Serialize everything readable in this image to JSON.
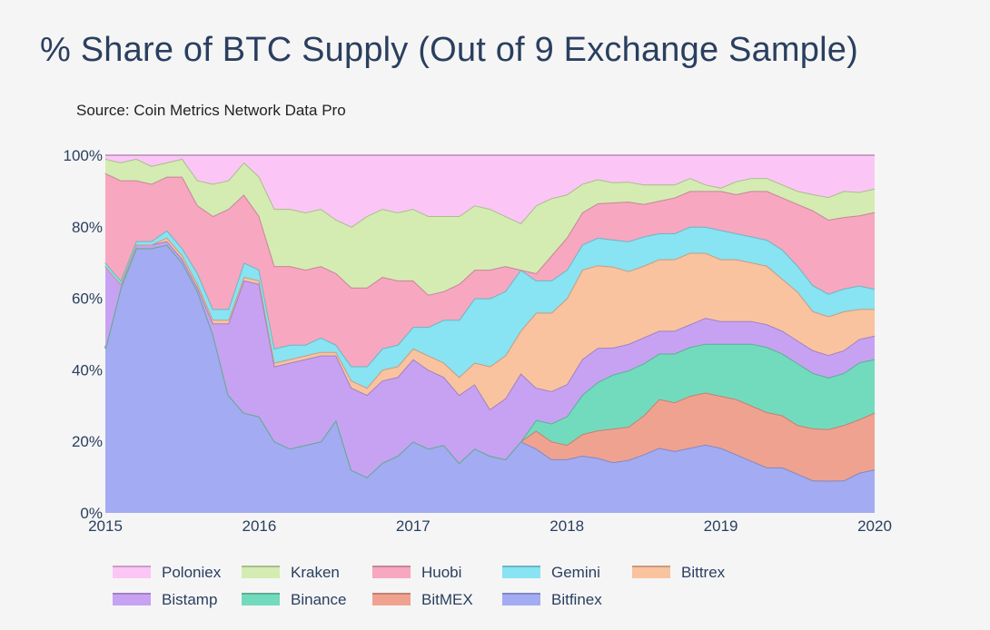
{
  "title": "% Share of BTC Supply (Out of 9 Exchange Sample)",
  "subtitle": "Source: Coin Metrics Network Data Pro",
  "chart_data": {
    "type": "area",
    "stacked": true,
    "normalized": true,
    "x": [
      2015.0,
      2015.1,
      2015.2,
      2015.3,
      2015.4,
      2015.5,
      2015.6,
      2015.7,
      2015.8,
      2015.9,
      2016.0,
      2016.1,
      2016.2,
      2016.3,
      2016.4,
      2016.5,
      2016.6,
      2016.7,
      2016.8,
      2016.9,
      2017.0,
      2017.1,
      2017.2,
      2017.3,
      2017.4,
      2017.5,
      2017.6,
      2017.7,
      2017.8,
      2017.9,
      2018.0,
      2018.1,
      2018.2,
      2018.3,
      2018.4,
      2018.5,
      2018.6,
      2018.7,
      2018.8,
      2018.9,
      2019.0,
      2019.1,
      2019.2,
      2019.3,
      2019.4,
      2019.5,
      2019.6,
      2019.7,
      2019.8,
      2019.9,
      2020.0
    ],
    "series": [
      {
        "name": "Bitfinex",
        "color": "#a3abf2",
        "values": [
          46,
          63,
          74,
          74,
          75,
          70,
          62,
          50,
          33,
          28,
          27,
          20,
          18,
          19,
          20,
          26,
          12,
          10,
          14,
          16,
          20,
          18,
          19,
          14,
          18,
          16,
          15,
          20,
          18,
          15,
          15,
          16,
          16,
          15,
          16,
          18,
          20,
          19,
          20,
          21,
          20,
          18,
          16,
          14,
          14,
          12,
          10,
          10,
          10,
          12,
          13
        ]
      },
      {
        "name": "BitMEX",
        "color": "#f0a290",
        "values": [
          0,
          0,
          0,
          0,
          0,
          0,
          0,
          0,
          0,
          0,
          0,
          0,
          0,
          0,
          0,
          0,
          0,
          0,
          0,
          0,
          0,
          0,
          0,
          0,
          0,
          0,
          0,
          0,
          5,
          5,
          4,
          6,
          8,
          10,
          10,
          12,
          15,
          15,
          16,
          16,
          16,
          17,
          17,
          17,
          16,
          15,
          16,
          16,
          17,
          16,
          17
        ]
      },
      {
        "name": "Binance",
        "color": "#73dbbd",
        "values": [
          0,
          0,
          0,
          0,
          0,
          0,
          0,
          0,
          0,
          0,
          0,
          0,
          0,
          0,
          0,
          0,
          0,
          0,
          0,
          0,
          0,
          0,
          0,
          0,
          0,
          0,
          0,
          0,
          3,
          5,
          8,
          11,
          14,
          16,
          17,
          16,
          14,
          15,
          15,
          15,
          16,
          17,
          19,
          20,
          19,
          19,
          17,
          16,
          16,
          17,
          16
        ]
      },
      {
        "name": "Bistamp",
        "color": "#c8a2f2",
        "values": [
          23,
          1,
          1,
          1,
          1,
          1,
          1,
          3,
          20,
          37,
          37,
          21,
          24,
          24,
          24,
          18,
          23,
          23,
          23,
          22,
          23,
          22,
          19,
          19,
          18,
          13,
          17,
          19,
          9,
          9,
          9,
          10,
          10,
          8,
          8,
          8,
          7,
          7,
          7,
          8,
          7,
          7,
          7,
          7,
          7,
          7,
          7,
          7,
          7,
          7,
          7
        ]
      },
      {
        "name": "Bittrex",
        "color": "#f9c39f",
        "values": [
          0,
          0,
          0,
          0,
          1,
          1,
          1,
          1,
          1,
          1,
          1,
          1,
          1,
          1,
          1,
          1,
          2,
          2,
          3,
          3,
          3,
          4,
          4,
          5,
          6,
          12,
          12,
          12,
          21,
          22,
          24,
          25,
          24,
          24,
          22,
          22,
          22,
          22,
          22,
          20,
          19,
          19,
          18,
          18,
          16,
          15,
          12,
          12,
          12,
          9,
          8
        ]
      },
      {
        "name": "Gemini",
        "color": "#88e3f2",
        "values": [
          1,
          1,
          1,
          1,
          2,
          2,
          3,
          3,
          3,
          4,
          3,
          4,
          4,
          3,
          4,
          2,
          4,
          6,
          6,
          6,
          6,
          8,
          12,
          16,
          18,
          19,
          18,
          17,
          9,
          9,
          8,
          7,
          8,
          8,
          9,
          9,
          8,
          8,
          8,
          8,
          9,
          8,
          8,
          8,
          9,
          8,
          8,
          7,
          7,
          7,
          6
        ]
      },
      {
        "name": "Huobi",
        "color": "#f7a7bf",
        "values": [
          25,
          28,
          17,
          16,
          15,
          20,
          19,
          26,
          28,
          19,
          15,
          23,
          22,
          21,
          20,
          20,
          22,
          22,
          20,
          18,
          13,
          9,
          8,
          10,
          8,
          8,
          7,
          0,
          2,
          7,
          9,
          9,
          10,
          11,
          12,
          10,
          10,
          11,
          11,
          11,
          12,
          12,
          14,
          15,
          16,
          19,
          23,
          23,
          22,
          21,
          23
        ]
      },
      {
        "name": "Kraken",
        "color": "#d4ecb2",
        "values": [
          4,
          5,
          6,
          5,
          4,
          5,
          7,
          9,
          8,
          9,
          11,
          16,
          16,
          16,
          16,
          15,
          17,
          20,
          19,
          19,
          20,
          22,
          21,
          19,
          18,
          17,
          14,
          13,
          19,
          16,
          12,
          8,
          7,
          6,
          6,
          6,
          5,
          4,
          4,
          2,
          1,
          4,
          4,
          4,
          4,
          4,
          5,
          7,
          8,
          7,
          7
        ]
      },
      {
        "name": "Poloniex",
        "color": "#fbc6f6",
        "values": [
          1,
          2,
          1,
          3,
          2,
          1,
          7,
          8,
          7,
          2,
          6,
          15,
          15,
          16,
          15,
          18,
          20,
          17,
          15,
          16,
          15,
          17,
          17,
          17,
          14,
          15,
          17,
          19,
          14,
          12,
          11,
          8,
          7,
          8,
          8,
          9,
          9,
          9,
          7,
          9,
          10,
          8,
          7,
          7,
          9,
          11,
          12,
          13,
          11,
          11,
          10
        ]
      }
    ],
    "legend_order": [
      "Poloniex",
      "Kraken",
      "Huobi",
      "Gemini",
      "Bittrex",
      "Bistamp",
      "Binance",
      "BitMEX",
      "Bitfinex"
    ],
    "x_ticks": [
      "2015",
      "2016",
      "2017",
      "2018",
      "2019",
      "2020"
    ],
    "y_ticks": [
      "0%",
      "20%",
      "40%",
      "60%",
      "80%",
      "100%"
    ],
    "xlim": [
      2015,
      2020
    ],
    "ylim": [
      0,
      100
    ],
    "legend_position": "bottom",
    "grid": false
  }
}
